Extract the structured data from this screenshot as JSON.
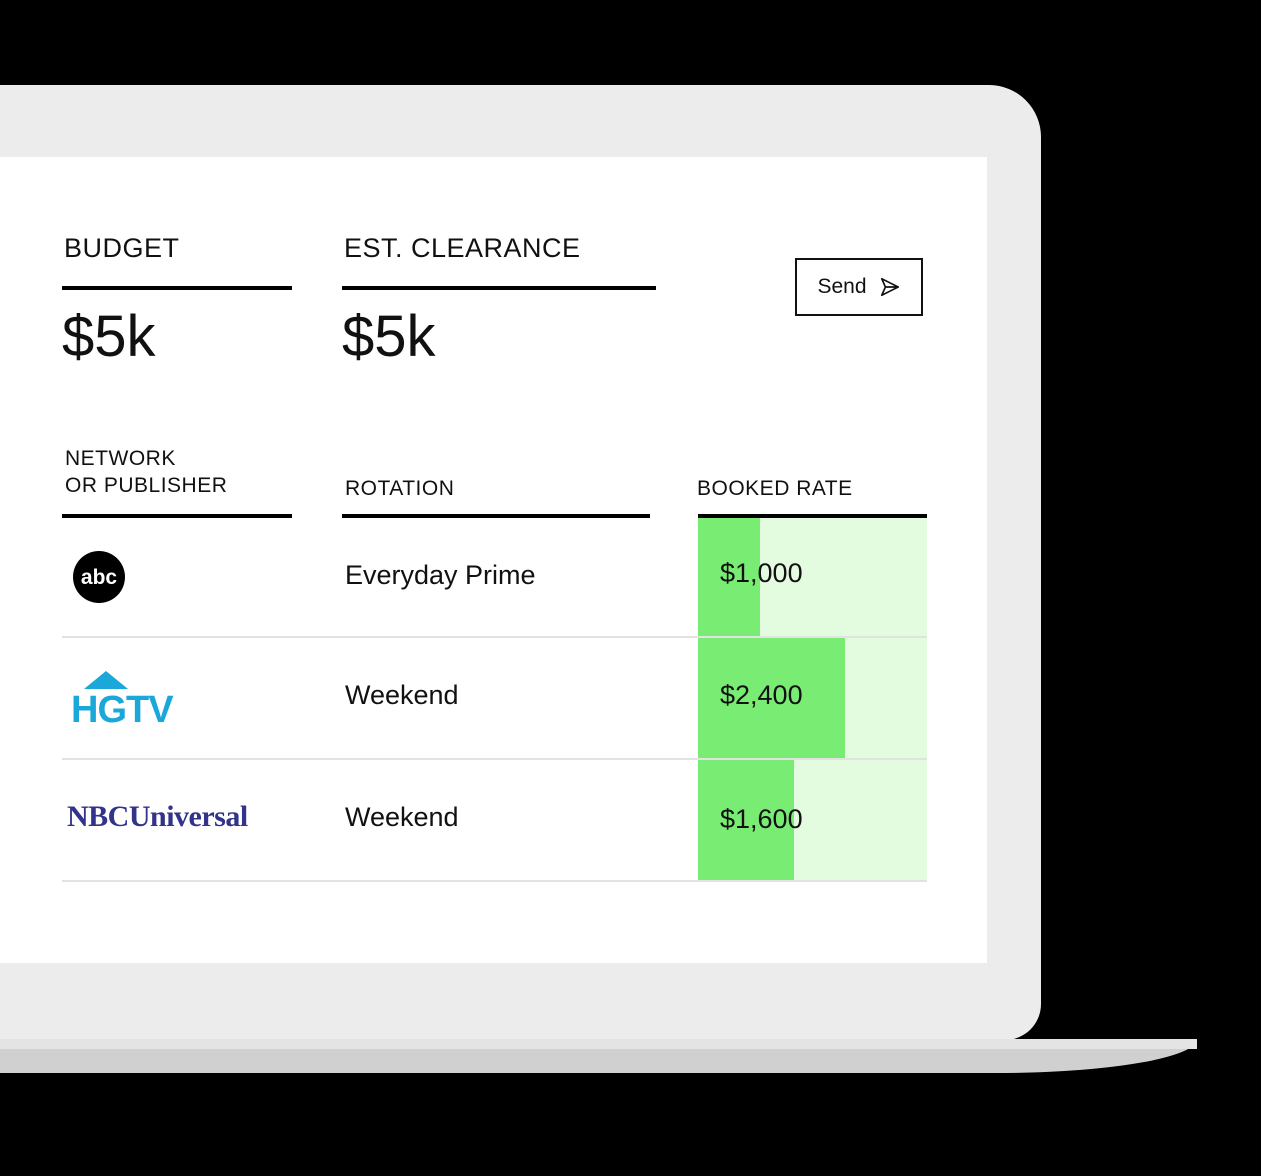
{
  "header": {
    "budget_label": "BUDGET",
    "budget_value": "$5k",
    "clearance_label": "EST. CLEARANCE",
    "clearance_value": "$5k",
    "send_label": "Send",
    "send_icon": "send-icon"
  },
  "table": {
    "columns": {
      "network_line1": "NETWORK",
      "network_line2": "OR PUBLISHER",
      "rotation": "ROTATION",
      "booked_rate": "BOOKED RATE"
    },
    "rows": [
      {
        "network": "abc",
        "rotation": "Everyday Prime",
        "rate": "$1,000",
        "rate_fill": 0.27
      },
      {
        "network": "HGTV",
        "rotation": "Weekend",
        "rate": "$2,400",
        "rate_fill": 0.64
      },
      {
        "network": "NBCUniversal",
        "rotation": "Weekend",
        "rate": "$1,600",
        "rate_fill": 0.42
      }
    ]
  },
  "colors": {
    "fill": "#79ec74",
    "fill_bg": "#e3fbdf",
    "hgtv": "#1aa7d9",
    "nbc": "#32338a"
  }
}
